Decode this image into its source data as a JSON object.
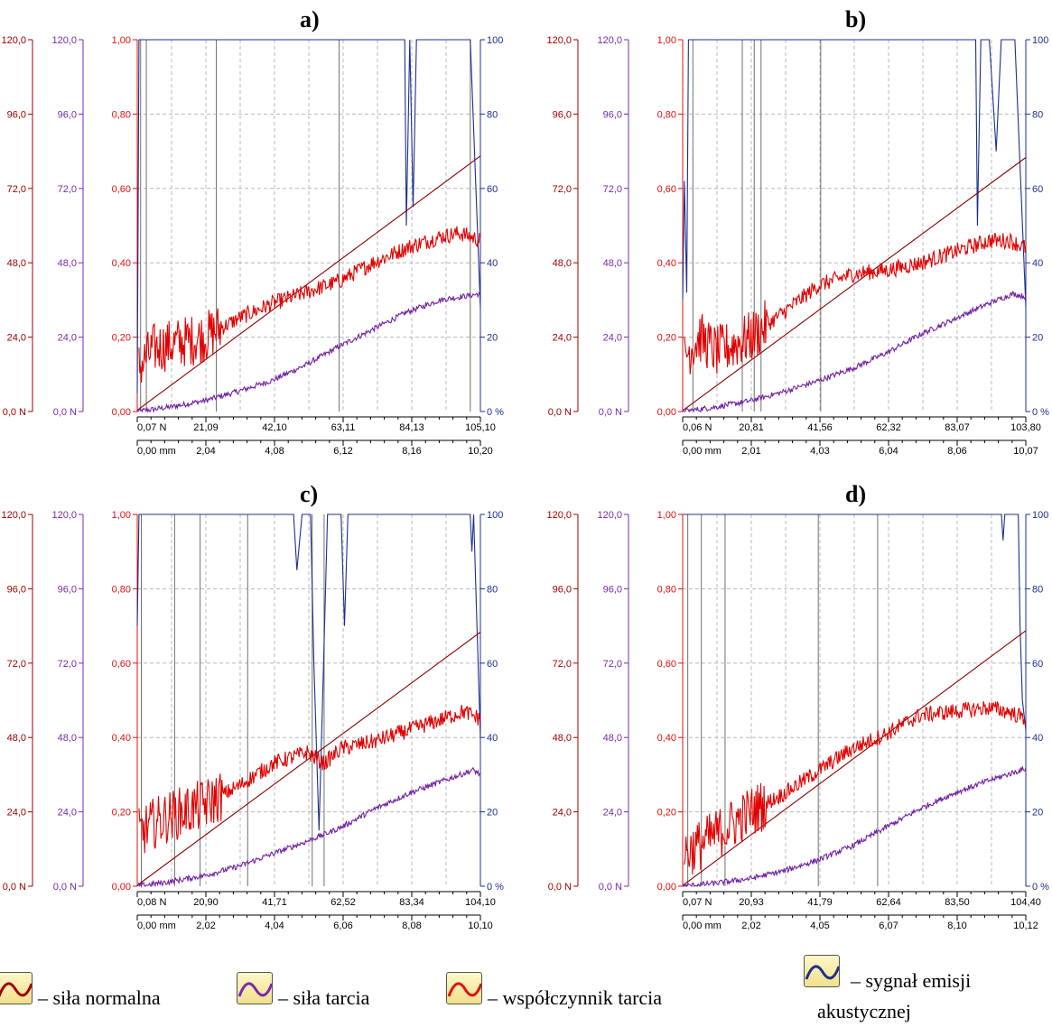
{
  "chart_data": [
    {
      "type": "line",
      "panel": "a)",
      "title": "a)",
      "force_axis": {
        "ticks": [
          "0,0 N",
          "24,0",
          "48,0",
          "72,0",
          "96,0",
          "120,0"
        ],
        "range": [
          0,
          120
        ]
      },
      "friction_force_axis": {
        "ticks": [
          "0,0 N",
          "24,0",
          "48,0",
          "72,0",
          "96,0",
          "120,0"
        ],
        "range": [
          0,
          120
        ]
      },
      "coefficient_axis": {
        "ticks": [
          "0,00",
          "0,20",
          "0,40",
          "0,60",
          "0,80",
          "1,00"
        ],
        "range": [
          0,
          1
        ]
      },
      "ae_axis": {
        "ticks": [
          "0 %",
          "20",
          "40",
          "60",
          "80",
          "100"
        ],
        "range": [
          0,
          100
        ]
      },
      "x_force_labels": [
        "0,07 N",
        "21,09",
        "42,10",
        "63,11",
        "84,13",
        "105,10"
      ],
      "x_mm_labels": [
        "0,00 mm",
        "2,04",
        "4,08",
        "6,12",
        "8,16",
        "10,20"
      ],
      "x_range_mm": [
        0,
        10.2
      ],
      "event_lines_mm": [
        0.1,
        0.27,
        2.35,
        6.0,
        9.9
      ],
      "series": [
        {
          "name": "siła normalna",
          "color": "#8b0000",
          "values": [
            [
              0,
              0.4
            ],
            [
              10.2,
              82.5
            ]
          ]
        },
        {
          "name": "siła tarcia",
          "color": "#7020a0",
          "values": [
            [
              0,
              0
            ],
            [
              1,
              1.5
            ],
            [
              2,
              3.5
            ],
            [
              3,
              6.5
            ],
            [
              4,
              10
            ],
            [
              5,
              15
            ],
            [
              6,
              21
            ],
            [
              7,
              26.5
            ],
            [
              8,
              32
            ],
            [
              9,
              36
            ],
            [
              10.2,
              38
            ]
          ]
        },
        {
          "name": "współczynnik tarcia",
          "color": "#e00000",
          "values": [
            [
              0.05,
              0.12
            ],
            [
              0.5,
              0.17
            ],
            [
              1,
              0.18
            ],
            [
              2,
              0.2
            ],
            [
              3,
              0.25
            ],
            [
              4,
              0.29
            ],
            [
              5,
              0.32
            ],
            [
              6,
              0.35
            ],
            [
              7,
              0.4
            ],
            [
              8,
              0.44
            ],
            [
              9,
              0.47
            ],
            [
              9.6,
              0.48
            ],
            [
              10.2,
              0.46
            ]
          ]
        },
        {
          "name": "sygnał emisji akustycznej",
          "color": "#1c2f8c",
          "values": [
            [
              0,
              5
            ],
            [
              0.05,
              100
            ],
            [
              7.95,
              100
            ],
            [
              8.0,
              50
            ],
            [
              8.1,
              100
            ],
            [
              8.2,
              55
            ],
            [
              8.3,
              100
            ],
            [
              9.9,
              100
            ],
            [
              10.2,
              28
            ]
          ]
        }
      ]
    },
    {
      "type": "line",
      "panel": "b)",
      "title": "b)",
      "force_axis": {
        "ticks": [
          "0,0 N",
          "24,0",
          "48,0",
          "72,0",
          "96,0",
          "120,0"
        ],
        "range": [
          0,
          120
        ]
      },
      "friction_force_axis": {
        "ticks": [
          "0,0 N",
          "24,0",
          "48,0",
          "72,0",
          "96,0",
          "120,0"
        ],
        "range": [
          0,
          120
        ]
      },
      "coefficient_axis": {
        "ticks": [
          "0,00",
          "0,20",
          "0,40",
          "0,60",
          "0,80",
          "1,00"
        ],
        "range": [
          0,
          1
        ]
      },
      "ae_axis": {
        "ticks": [
          "0 %",
          "20",
          "40",
          "60",
          "80",
          "100"
        ],
        "range": [
          0,
          100
        ]
      },
      "x_force_labels": [
        "0,06 N",
        "20,81",
        "41,56",
        "62,32",
        "83,07",
        "103,80"
      ],
      "x_mm_labels": [
        "0,00 mm",
        "2,01",
        "4,03",
        "6,04",
        "8,06",
        "10,07"
      ],
      "x_range_mm": [
        0,
        10.07
      ],
      "event_lines_mm": [
        0.3,
        1.75,
        2.1,
        2.3,
        4.05
      ],
      "series": [
        {
          "name": "siła normalna",
          "color": "#8b0000",
          "values": [
            [
              0,
              0.3
            ],
            [
              10.07,
              82
            ]
          ]
        },
        {
          "name": "siła tarcia",
          "color": "#7020a0",
          "values": [
            [
              0,
              0
            ],
            [
              1,
              1.5
            ],
            [
              2,
              3.5
            ],
            [
              3,
              6.5
            ],
            [
              4,
              10
            ],
            [
              5,
              14
            ],
            [
              6,
              19
            ],
            [
              7,
              25
            ],
            [
              8,
              30
            ],
            [
              9,
              35
            ],
            [
              9.7,
              38
            ],
            [
              10.07,
              37
            ]
          ]
        },
        {
          "name": "współczynnik tarcia",
          "color": "#e00000",
          "values": [
            [
              0.05,
              0.15
            ],
            [
              0.5,
              0.2
            ],
            [
              1,
              0.16
            ],
            [
              2,
              0.2
            ],
            [
              3,
              0.27
            ],
            [
              4,
              0.34
            ],
            [
              5,
              0.37
            ],
            [
              6,
              0.38
            ],
            [
              7,
              0.4
            ],
            [
              8,
              0.43
            ],
            [
              9,
              0.46
            ],
            [
              9.6,
              0.46
            ],
            [
              10.07,
              0.44
            ]
          ]
        },
        {
          "name": "sygnał emisji akustycznej",
          "color": "#1c2f8c",
          "values": [
            [
              0,
              30
            ],
            [
              0.05,
              62
            ],
            [
              0.12,
              32
            ],
            [
              0.17,
              100
            ],
            [
              8.6,
              100
            ],
            [
              8.65,
              50
            ],
            [
              8.75,
              100
            ],
            [
              9.0,
              100
            ],
            [
              9.2,
              70
            ],
            [
              9.35,
              100
            ],
            [
              9.75,
              100
            ],
            [
              10.07,
              28
            ]
          ]
        }
      ]
    },
    {
      "type": "line",
      "panel": "c)",
      "title": "c)",
      "force_axis": {
        "ticks": [
          "0,0 N",
          "24,0",
          "48,0",
          "72,0",
          "96,0",
          "120,0"
        ],
        "range": [
          0,
          120
        ]
      },
      "friction_force_axis": {
        "ticks": [
          "0,0 N",
          "24,0",
          "48,0",
          "72,0",
          "96,0",
          "120,0"
        ],
        "range": [
          0,
          120
        ]
      },
      "coefficient_axis": {
        "ticks": [
          "0,00",
          "0,20",
          "0,40",
          "0,60",
          "0,80",
          "1,00"
        ],
        "range": [
          0,
          1
        ]
      },
      "ae_axis": {
        "ticks": [
          "0 %",
          "20",
          "40",
          "60",
          "80",
          "100"
        ],
        "range": [
          0,
          100
        ]
      },
      "x_force_labels": [
        "0,08 N",
        "20,90",
        "41,71",
        "62,52",
        "83,34",
        "104,10"
      ],
      "x_mm_labels": [
        "0,00 mm",
        "2,02",
        "4,04",
        "6,06",
        "8,08",
        "10,10"
      ],
      "x_range_mm": [
        0,
        10.1
      ],
      "event_lines_mm": [
        0.12,
        1.1,
        1.85,
        3.25,
        5.15,
        5.5
      ],
      "series": [
        {
          "name": "siła normalna",
          "color": "#8b0000",
          "values": [
            [
              0,
              0.3
            ],
            [
              10.1,
              82
            ]
          ]
        },
        {
          "name": "siła tarcia",
          "color": "#7020a0",
          "values": [
            [
              0,
              0
            ],
            [
              1,
              1.5
            ],
            [
              2,
              3.5
            ],
            [
              3,
              6.5
            ],
            [
              4,
              10.5
            ],
            [
              5,
              14.5
            ],
            [
              6,
              19
            ],
            [
              7,
              25
            ],
            [
              8,
              30
            ],
            [
              9,
              34
            ],
            [
              9.9,
              37.5
            ],
            [
              10.1,
              36
            ]
          ]
        },
        {
          "name": "współczynnik tarcia",
          "color": "#e00000",
          "values": [
            [
              0.05,
              0.14
            ],
            [
              0.5,
              0.17
            ],
            [
              1,
              0.19
            ],
            [
              2,
              0.22
            ],
            [
              3,
              0.27
            ],
            [
              4,
              0.33
            ],
            [
              5,
              0.36
            ],
            [
              5.5,
              0.33
            ],
            [
              6,
              0.37
            ],
            [
              7,
              0.39
            ],
            [
              8,
              0.42
            ],
            [
              9,
              0.45
            ],
            [
              9.6,
              0.47
            ],
            [
              10.1,
              0.45
            ]
          ]
        },
        {
          "name": "sygnał emisji akustycznej",
          "color": "#1c2f8c",
          "values": [
            [
              0,
              70
            ],
            [
              0.05,
              100
            ],
            [
              4.6,
              100
            ],
            [
              4.7,
              85
            ],
            [
              4.85,
              100
            ],
            [
              5.1,
              100
            ],
            [
              5.2,
              60
            ],
            [
              5.35,
              15
            ],
            [
              5.5,
              65
            ],
            [
              5.6,
              100
            ],
            [
              6.0,
              100
            ],
            [
              6.1,
              70
            ],
            [
              6.2,
              100
            ],
            [
              9.8,
              100
            ],
            [
              9.85,
              90
            ],
            [
              9.9,
              100
            ],
            [
              10.0,
              70
            ],
            [
              10.1,
              40
            ]
          ]
        }
      ]
    },
    {
      "type": "line",
      "panel": "d)",
      "title": "d)",
      "force_axis": {
        "ticks": [
          "0,0 N",
          "24,0",
          "48,0",
          "72,0",
          "96,0",
          "120,0"
        ],
        "range": [
          0,
          120
        ]
      },
      "friction_force_axis": {
        "ticks": [
          "0,0 N",
          "24,0",
          "48,0",
          "72,0",
          "96,0",
          "120,0"
        ],
        "range": [
          0,
          120
        ]
      },
      "coefficient_axis": {
        "ticks": [
          "0,00",
          "0,20",
          "0,40",
          "0,60",
          "0,80",
          "1,00"
        ],
        "range": [
          0,
          1
        ]
      },
      "ae_axis": {
        "ticks": [
          "0 %",
          "20",
          "40",
          "60",
          "80",
          "100"
        ],
        "range": [
          0,
          100
        ]
      },
      "x_force_labels": [
        "0,07 N",
        "20,93",
        "41,79",
        "62,64",
        "83,50",
        "104,40"
      ],
      "x_mm_labels": [
        "0,00 mm",
        "2,02",
        "4,05",
        "6,07",
        "8,10",
        "10,12"
      ],
      "x_range_mm": [
        0,
        10.12
      ],
      "event_lines_mm": [
        0.15,
        0.55,
        1.25,
        4.0,
        5.75
      ],
      "series": [
        {
          "name": "siła normalna",
          "color": "#8b0000",
          "values": [
            [
              0,
              0.2
            ],
            [
              10.12,
              82.5
            ]
          ]
        },
        {
          "name": "siła tarcia",
          "color": "#7020a0",
          "values": [
            [
              0,
              0
            ],
            [
              1,
              1
            ],
            [
              2,
              2.5
            ],
            [
              3,
              5
            ],
            [
              4,
              8.5
            ],
            [
              5,
              13
            ],
            [
              6,
              19
            ],
            [
              7,
              25
            ],
            [
              8,
              30
            ],
            [
              9,
              34
            ],
            [
              10.12,
              38
            ]
          ]
        },
        {
          "name": "współczynnik tarcia",
          "color": "#e00000",
          "values": [
            [
              0.05,
              0.09
            ],
            [
              0.5,
              0.11
            ],
            [
              1,
              0.14
            ],
            [
              2,
              0.2
            ],
            [
              3,
              0.25
            ],
            [
              4,
              0.31
            ],
            [
              5,
              0.37
            ],
            [
              6,
              0.41
            ],
            [
              7,
              0.46
            ],
            [
              8,
              0.47
            ],
            [
              9,
              0.48
            ],
            [
              9.6,
              0.47
            ],
            [
              10.12,
              0.45
            ]
          ]
        },
        {
          "name": "sygnał emisji akustycznej",
          "color": "#1c2f8c",
          "values": [
            [
              0,
              100
            ],
            [
              9.4,
              100
            ],
            [
              9.45,
              93
            ],
            [
              9.5,
              100
            ],
            [
              9.9,
              100
            ],
            [
              9.95,
              70
            ],
            [
              10.02,
              50
            ],
            [
              10.12,
              42
            ]
          ]
        }
      ]
    }
  ],
  "legend": {
    "normal_force": "– siła normalna",
    "friction_force": "– siła tarcia",
    "friction_coefficient": "– współczynnik tarcia",
    "ae_signal_line1": "– sygnał emisji",
    "ae_signal_line2": "akustycznej"
  }
}
